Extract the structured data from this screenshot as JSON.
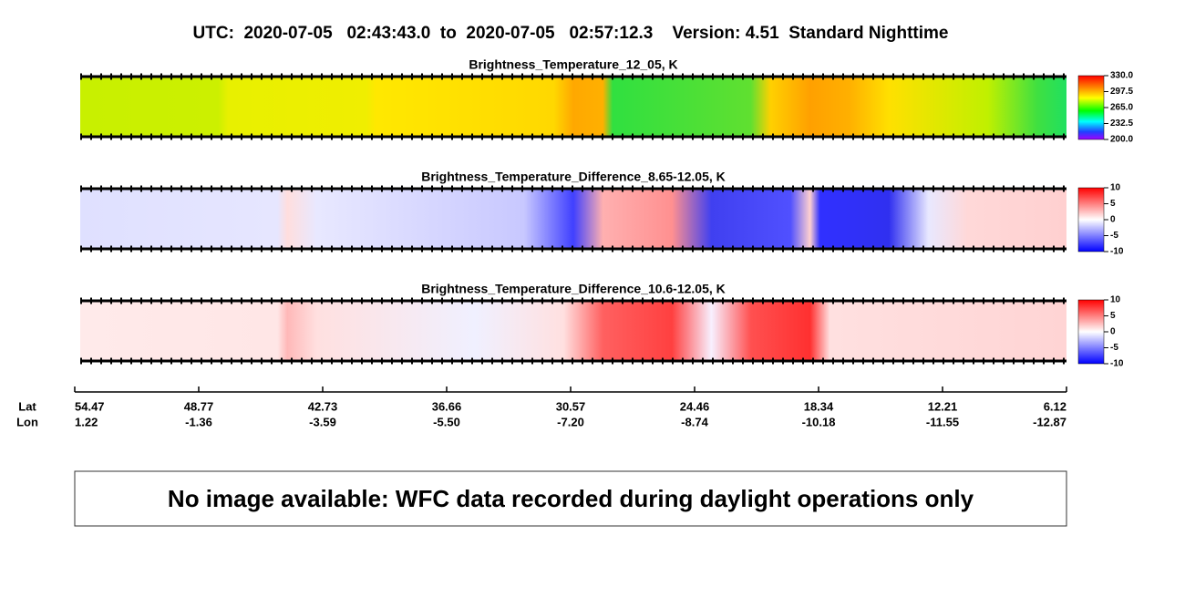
{
  "header": {
    "title": "UTC:  2020-07-05   02:43:43.0  to  2020-07-05   02:57:12.3    Version: 4.51  Standard Nighttime"
  },
  "panels": [
    {
      "title": "Brightness_Temperature_12_05, K",
      "colorbar_ticks": [
        "330.0",
        "297.5",
        "265.0",
        "232.5",
        "200.0"
      ]
    },
    {
      "title": "Brightness_Temperature_Difference_8.65-12.05, K",
      "colorbar_ticks": [
        "10",
        "5",
        "0",
        "-5",
        "-10"
      ]
    },
    {
      "title": "Brightness_Temperature_Difference_10.6-12.05, K",
      "colorbar_ticks": [
        "10",
        "5",
        "0",
        "-5",
        "-10"
      ]
    }
  ],
  "axis": {
    "row_labels": [
      "Lat",
      "Lon"
    ],
    "ticks": [
      {
        "lat": "54.47",
        "lon": "1.22"
      },
      {
        "lat": "48.77",
        "lon": "-1.36"
      },
      {
        "lat": "42.73",
        "lon": "-3.59"
      },
      {
        "lat": "36.66",
        "lon": "-5.50"
      },
      {
        "lat": "30.57",
        "lon": "-7.20"
      },
      {
        "lat": "24.46",
        "lon": "-8.74"
      },
      {
        "lat": "18.34",
        "lon": "-10.18"
      },
      {
        "lat": "12.21",
        "lon": "-11.55"
      },
      {
        "lat": "6.12",
        "lon": "-12.87"
      }
    ]
  },
  "message": "No image available: WFC data recorded during daylight operations only"
}
